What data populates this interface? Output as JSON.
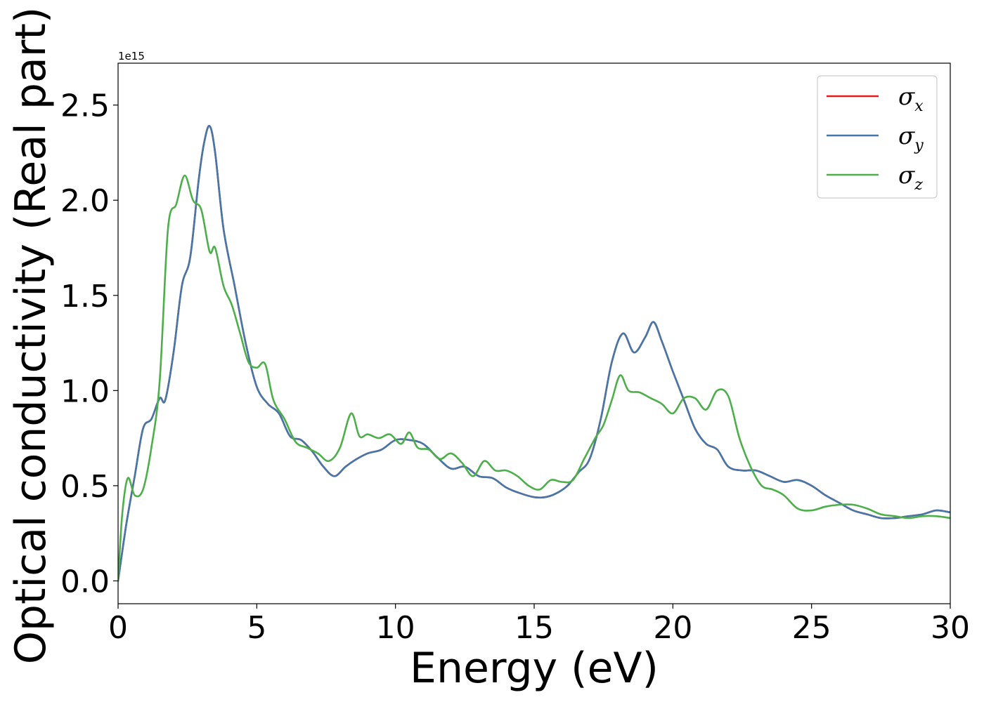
{
  "chart_data": {
    "type": "line",
    "title": "",
    "xlabel": "Energy (eV)",
    "ylabel": "Optical conductivity (Real part)",
    "offset_label": "1e15",
    "xlim": [
      0,
      30
    ],
    "ylim": [
      -0.12,
      2.72
    ],
    "xticks": [
      0,
      5,
      10,
      15,
      20,
      25,
      30
    ],
    "xtick_labels": [
      "0",
      "5",
      "10",
      "15",
      "20",
      "25",
      "30"
    ],
    "yticks": [
      0.0,
      0.5,
      1.0,
      1.5,
      2.0,
      2.5
    ],
    "ytick_labels": [
      "0.0",
      "0.5",
      "1.0",
      "1.5",
      "2.0",
      "2.5"
    ],
    "grid": false,
    "legend_position": "upper-right",
    "series": [
      {
        "name": "σx",
        "symbol": "σ",
        "subscript": "x",
        "color": "#e41a1c",
        "x": [
          0,
          0.3,
          0.6,
          0.9,
          1.2,
          1.5,
          1.7,
          2.0,
          2.3,
          2.6,
          2.9,
          3.1,
          3.3,
          3.5,
          3.8,
          4.2,
          4.6,
          5.0,
          5.4,
          5.8,
          6.2,
          6.6,
          7.0,
          7.4,
          7.8,
          8.2,
          8.6,
          9.0,
          9.5,
          10.0,
          10.5,
          11.0,
          11.5,
          12.0,
          12.5,
          13.0,
          13.5,
          14.0,
          14.5,
          15.0,
          15.4,
          15.8,
          16.2,
          16.6,
          17.0,
          17.4,
          17.8,
          18.2,
          18.6,
          19.0,
          19.3,
          19.6,
          20.0,
          20.4,
          20.8,
          21.2,
          21.6,
          22.0,
          22.5,
          23.0,
          23.5,
          24.0,
          24.5,
          25.0,
          25.5,
          26.0,
          26.5,
          27.0,
          27.5,
          28.0,
          28.5,
          29.0,
          29.5,
          30.0
        ],
        "y": [
          0.0,
          0.3,
          0.55,
          0.8,
          0.85,
          0.96,
          0.95,
          1.2,
          1.55,
          1.7,
          2.1,
          2.3,
          2.39,
          2.25,
          1.85,
          1.55,
          1.25,
          1.02,
          0.93,
          0.88,
          0.76,
          0.74,
          0.68,
          0.6,
          0.55,
          0.6,
          0.64,
          0.67,
          0.69,
          0.74,
          0.74,
          0.72,
          0.65,
          0.59,
          0.6,
          0.55,
          0.54,
          0.49,
          0.46,
          0.44,
          0.44,
          0.46,
          0.5,
          0.57,
          0.64,
          0.85,
          1.15,
          1.3,
          1.2,
          1.28,
          1.36,
          1.26,
          1.1,
          0.95,
          0.8,
          0.72,
          0.69,
          0.6,
          0.58,
          0.58,
          0.55,
          0.52,
          0.53,
          0.5,
          0.45,
          0.41,
          0.37,
          0.35,
          0.33,
          0.33,
          0.34,
          0.35,
          0.37,
          0.36
        ]
      },
      {
        "name": "σy",
        "symbol": "σ",
        "subscript": "y",
        "color": "#4477aa",
        "x": [
          0,
          0.3,
          0.6,
          0.9,
          1.2,
          1.5,
          1.7,
          2.0,
          2.3,
          2.6,
          2.9,
          3.1,
          3.3,
          3.5,
          3.8,
          4.2,
          4.6,
          5.0,
          5.4,
          5.8,
          6.2,
          6.6,
          7.0,
          7.4,
          7.8,
          8.2,
          8.6,
          9.0,
          9.5,
          10.0,
          10.5,
          11.0,
          11.5,
          12.0,
          12.5,
          13.0,
          13.5,
          14.0,
          14.5,
          15.0,
          15.4,
          15.8,
          16.2,
          16.6,
          17.0,
          17.4,
          17.8,
          18.2,
          18.6,
          19.0,
          19.3,
          19.6,
          20.0,
          20.4,
          20.8,
          21.2,
          21.6,
          22.0,
          22.5,
          23.0,
          23.5,
          24.0,
          24.5,
          25.0,
          25.5,
          26.0,
          26.5,
          27.0,
          27.5,
          28.0,
          28.5,
          29.0,
          29.5,
          30.0
        ],
        "y": [
          0.0,
          0.3,
          0.55,
          0.8,
          0.85,
          0.96,
          0.95,
          1.2,
          1.55,
          1.7,
          2.1,
          2.3,
          2.39,
          2.25,
          1.85,
          1.55,
          1.25,
          1.02,
          0.93,
          0.88,
          0.76,
          0.74,
          0.68,
          0.6,
          0.55,
          0.6,
          0.64,
          0.67,
          0.69,
          0.74,
          0.74,
          0.72,
          0.65,
          0.59,
          0.6,
          0.55,
          0.54,
          0.49,
          0.46,
          0.44,
          0.44,
          0.46,
          0.5,
          0.57,
          0.64,
          0.85,
          1.15,
          1.3,
          1.2,
          1.28,
          1.36,
          1.26,
          1.1,
          0.95,
          0.8,
          0.72,
          0.69,
          0.6,
          0.58,
          0.58,
          0.55,
          0.52,
          0.53,
          0.5,
          0.45,
          0.41,
          0.37,
          0.35,
          0.33,
          0.33,
          0.34,
          0.35,
          0.37,
          0.36
        ]
      },
      {
        "name": "σz",
        "symbol": "σ",
        "subscript": "z",
        "color": "#4daf4a",
        "x": [
          0,
          0.15,
          0.35,
          0.6,
          0.9,
          1.2,
          1.5,
          1.8,
          2.1,
          2.4,
          2.7,
          3.0,
          3.3,
          3.5,
          3.8,
          4.1,
          4.4,
          4.7,
          5.0,
          5.3,
          5.6,
          6.0,
          6.4,
          6.8,
          7.2,
          7.6,
          8.0,
          8.4,
          8.7,
          9.0,
          9.4,
          9.8,
          10.2,
          10.5,
          10.8,
          11.2,
          11.6,
          12.0,
          12.4,
          12.8,
          13.2,
          13.6,
          14.0,
          14.4,
          14.8,
          15.2,
          15.6,
          16.0,
          16.4,
          16.8,
          17.2,
          17.5,
          17.8,
          18.1,
          18.4,
          18.8,
          19.2,
          19.6,
          20.0,
          20.4,
          20.8,
          21.2,
          21.6,
          22.0,
          22.4,
          22.8,
          23.2,
          23.6,
          24.0,
          24.5,
          25.0,
          25.5,
          26.0,
          26.5,
          27.0,
          27.5,
          28.0,
          28.5,
          29.0,
          29.5,
          30.0
        ],
        "y": [
          0.0,
          0.35,
          0.54,
          0.45,
          0.48,
          0.7,
          1.05,
          1.85,
          1.98,
          2.13,
          2.0,
          1.95,
          1.73,
          1.75,
          1.55,
          1.45,
          1.3,
          1.15,
          1.12,
          1.14,
          0.95,
          0.85,
          0.73,
          0.7,
          0.67,
          0.63,
          0.7,
          0.88,
          0.76,
          0.77,
          0.75,
          0.77,
          0.72,
          0.78,
          0.7,
          0.69,
          0.64,
          0.67,
          0.62,
          0.55,
          0.63,
          0.58,
          0.58,
          0.55,
          0.5,
          0.48,
          0.53,
          0.52,
          0.53,
          0.64,
          0.75,
          0.82,
          0.95,
          1.08,
          1.0,
          0.99,
          0.96,
          0.93,
          0.88,
          0.96,
          0.96,
          0.9,
          1.0,
          0.97,
          0.75,
          0.6,
          0.5,
          0.48,
          0.45,
          0.38,
          0.37,
          0.39,
          0.4,
          0.4,
          0.38,
          0.35,
          0.34,
          0.33,
          0.34,
          0.34,
          0.33
        ]
      }
    ]
  }
}
